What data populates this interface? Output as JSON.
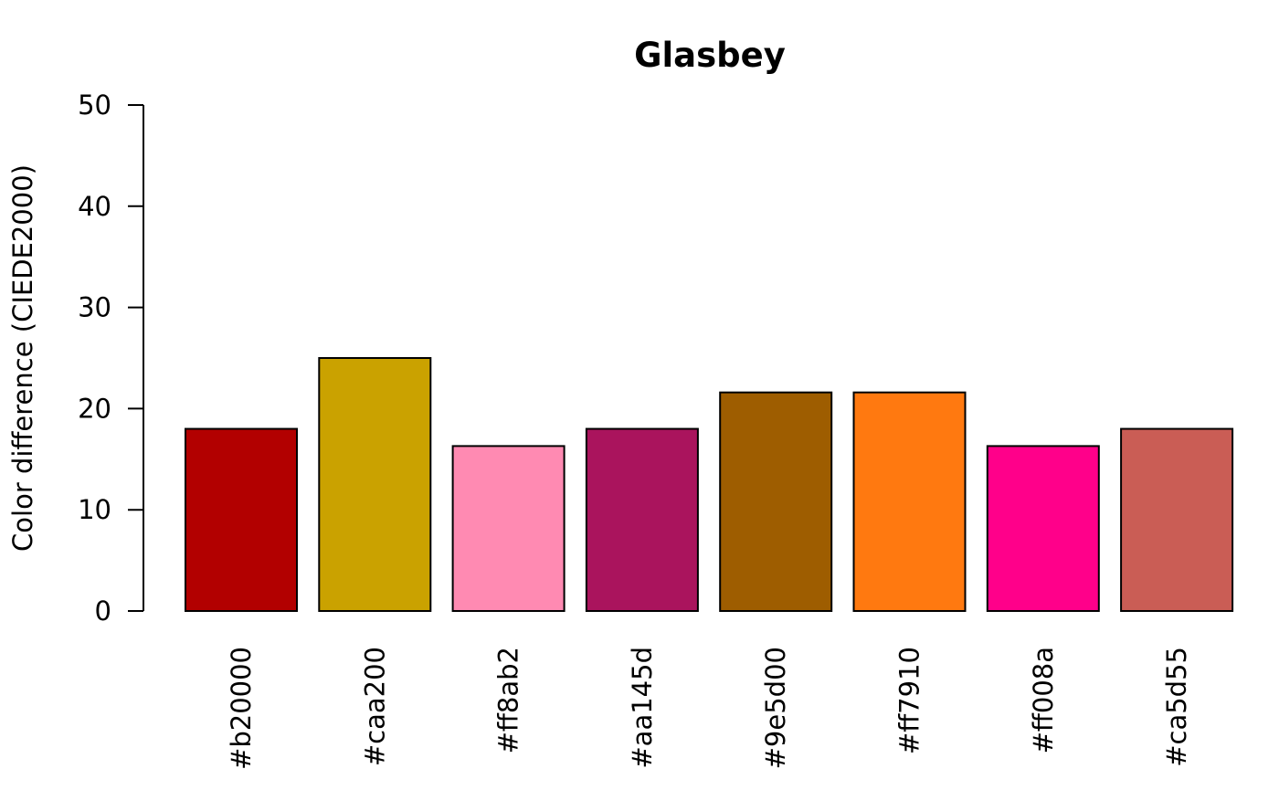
{
  "chart_data": {
    "type": "bar",
    "title": "Glasbey",
    "xlabel": "",
    "ylabel": "Color difference (CIEDE2000)",
    "ylim": [
      0,
      50
    ],
    "yticks": [
      0,
      10,
      20,
      30,
      40,
      50
    ],
    "categories": [
      "#b20000",
      "#caa200",
      "#ff8ab2",
      "#aa145d",
      "#9e5d00",
      "#ff7910",
      "#ff008a",
      "#ca5d55"
    ],
    "values": [
      18.0,
      25.0,
      16.3,
      18.0,
      21.6,
      21.6,
      16.3,
      18.0
    ],
    "colors": [
      "#b20000",
      "#caa200",
      "#ff8ab2",
      "#aa145d",
      "#9e5d00",
      "#ff7910",
      "#ff008a",
      "#ca5d55"
    ],
    "grid": false,
    "legend": "none"
  }
}
